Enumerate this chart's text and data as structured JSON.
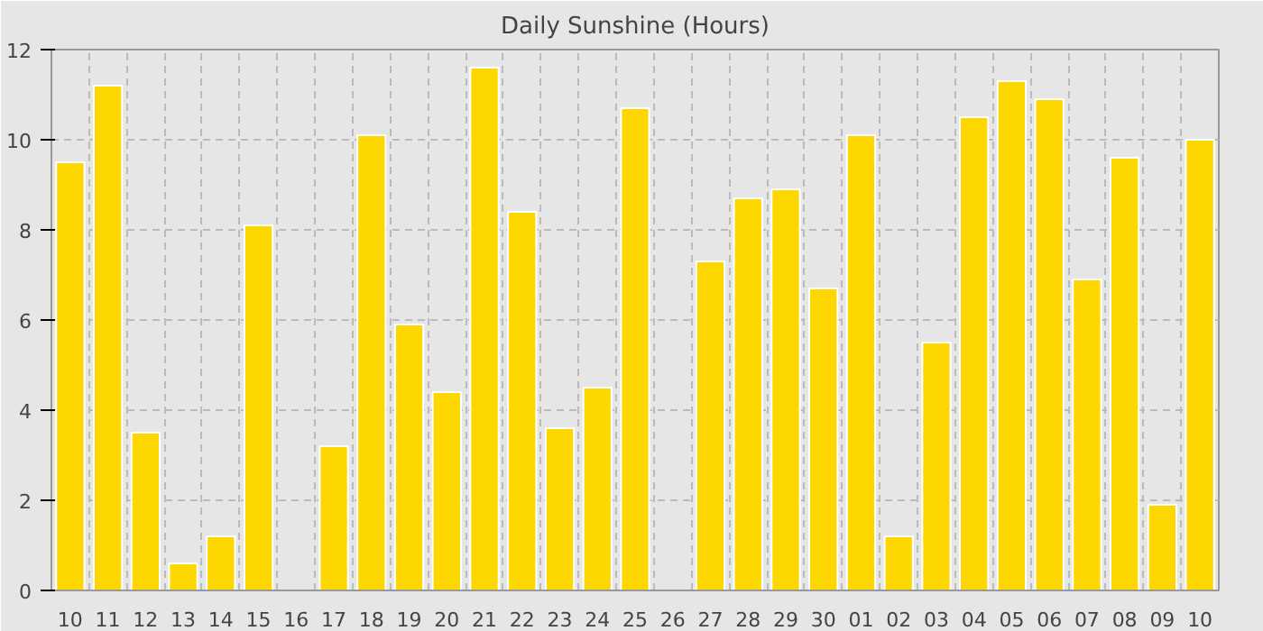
{
  "chart_data": {
    "type": "bar",
    "title": "Daily Sunshine (Hours)",
    "categories": [
      "10",
      "11",
      "12",
      "13",
      "14",
      "15",
      "16",
      "17",
      "18",
      "19",
      "20",
      "21",
      "22",
      "23",
      "24",
      "25",
      "26",
      "27",
      "28",
      "29",
      "30",
      "01",
      "02",
      "03",
      "04",
      "05",
      "06",
      "07",
      "08",
      "09",
      "10"
    ],
    "values": [
      9.5,
      11.2,
      3.5,
      0.6,
      1.2,
      8.1,
      null,
      3.2,
      10.1,
      5.9,
      4.4,
      11.6,
      8.4,
      3.6,
      4.5,
      10.7,
      null,
      7.3,
      8.7,
      8.9,
      6.7,
      10.1,
      1.2,
      5.5,
      10.5,
      11.3,
      10.9,
      6.9,
      9.6,
      1.9,
      10.0
    ],
    "color": "#ffd700",
    "ylim": [
      0,
      12
    ],
    "yticks": [
      0,
      2,
      4,
      6,
      8,
      10,
      12
    ],
    "grid": true
  }
}
